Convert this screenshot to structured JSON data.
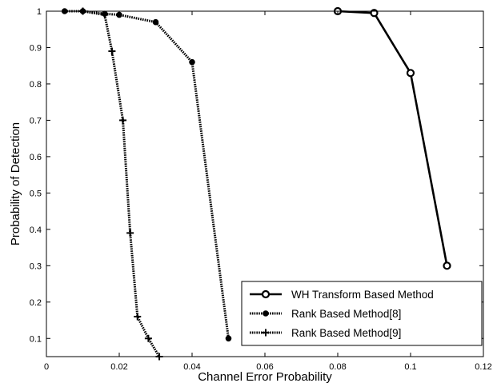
{
  "chart_data": {
    "type": "line",
    "title": "",
    "xlabel": "Channel Error Probability",
    "ylabel": "Probability of Detection",
    "xlim": [
      0,
      0.12
    ],
    "ylim": [
      0.05,
      1
    ],
    "xticks": [
      0,
      0.02,
      0.04,
      0.06,
      0.08,
      0.1,
      0.12
    ],
    "xtick_labels": [
      "0",
      "0.02",
      "0.04",
      "0.06",
      "0.08",
      "0.1",
      "0.12"
    ],
    "yticks": [
      0.1,
      0.2,
      0.3,
      0.4,
      0.5,
      0.6,
      0.7,
      0.8,
      0.9,
      1
    ],
    "ytick_labels": [
      "0.1",
      "0.2",
      "0.3",
      "0.4",
      "0.5",
      "0.6",
      "0.7",
      "0.8",
      "0.9",
      "1"
    ],
    "grid": false,
    "legend_position": "bottom-right",
    "series": [
      {
        "name": "WH Transform Based Method",
        "marker": "open-circle",
        "line_style": "solid",
        "color": "#000000",
        "x": [
          0.08,
          0.09,
          0.1,
          0.11
        ],
        "y": [
          1.0,
          0.995,
          0.83,
          0.3
        ]
      },
      {
        "name": "Rank Based Method[8]",
        "marker": "filled-circle",
        "line_style": "dotted",
        "color": "#000000",
        "x": [
          0.005,
          0.01,
          0.016,
          0.02,
          0.03,
          0.04,
          0.05
        ],
        "y": [
          1.0,
          1.0,
          0.993,
          0.99,
          0.97,
          0.86,
          0.1
        ]
      },
      {
        "name": "Rank Based Method[9]",
        "marker": "plus",
        "line_style": "dotted",
        "color": "#000000",
        "x": [
          0.01,
          0.016,
          0.018,
          0.021,
          0.023,
          0.025,
          0.028,
          0.031
        ],
        "y": [
          1.0,
          0.99,
          0.89,
          0.7,
          0.39,
          0.16,
          0.1,
          0.05
        ]
      }
    ]
  }
}
